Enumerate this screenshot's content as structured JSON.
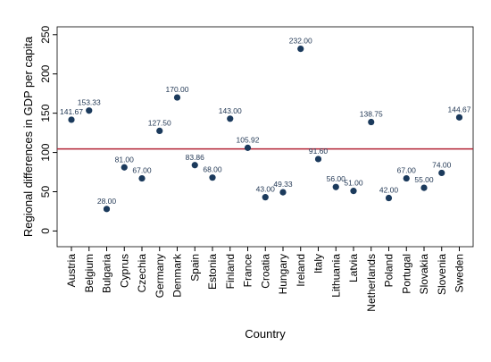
{
  "chart_data": {
    "type": "scatter",
    "xlabel": "Country",
    "ylabel": "Regional differences in GDP per capita",
    "ylim": [
      -20,
      260
    ],
    "yticks": [
      0,
      50,
      100,
      150,
      200,
      250
    ],
    "grid": false,
    "marker_color": "#1b3a5c",
    "reference_line": {
      "y": 104.5,
      "color": "#b22234"
    },
    "categories": [
      "Austria",
      "Belgium",
      "Bulgaria",
      "Cyprus",
      "Czechia",
      "Germany",
      "Denmark",
      "Spain",
      "Estonia",
      "Finland",
      "France",
      "Croatia",
      "Hungary",
      "Ireland",
      "Italy",
      "Lithuania",
      "Latvia",
      "Netherlands",
      "Poland",
      "Portugal",
      "Slovakia",
      "Slovenia",
      "Sweden"
    ],
    "values": [
      141.67,
      153.33,
      28.0,
      81.0,
      67.0,
      127.5,
      170.0,
      83.86,
      68.0,
      143.0,
      105.92,
      43.0,
      49.33,
      232.0,
      91.6,
      56.0,
      51.0,
      138.75,
      42.0,
      67.0,
      55.0,
      74.0,
      144.67
    ],
    "value_labels": [
      "141.67",
      "153.33",
      "28.00",
      "81.00",
      "67.00",
      "127.50",
      "170.00",
      "83.86",
      "68.00",
      "143.00",
      "105.92",
      "43.00",
      "49.33",
      "232.00",
      "91.60",
      "56.00",
      "51.00",
      "138.75",
      "42.00",
      "67.00",
      "55.00",
      "74.00",
      "144.67"
    ]
  }
}
